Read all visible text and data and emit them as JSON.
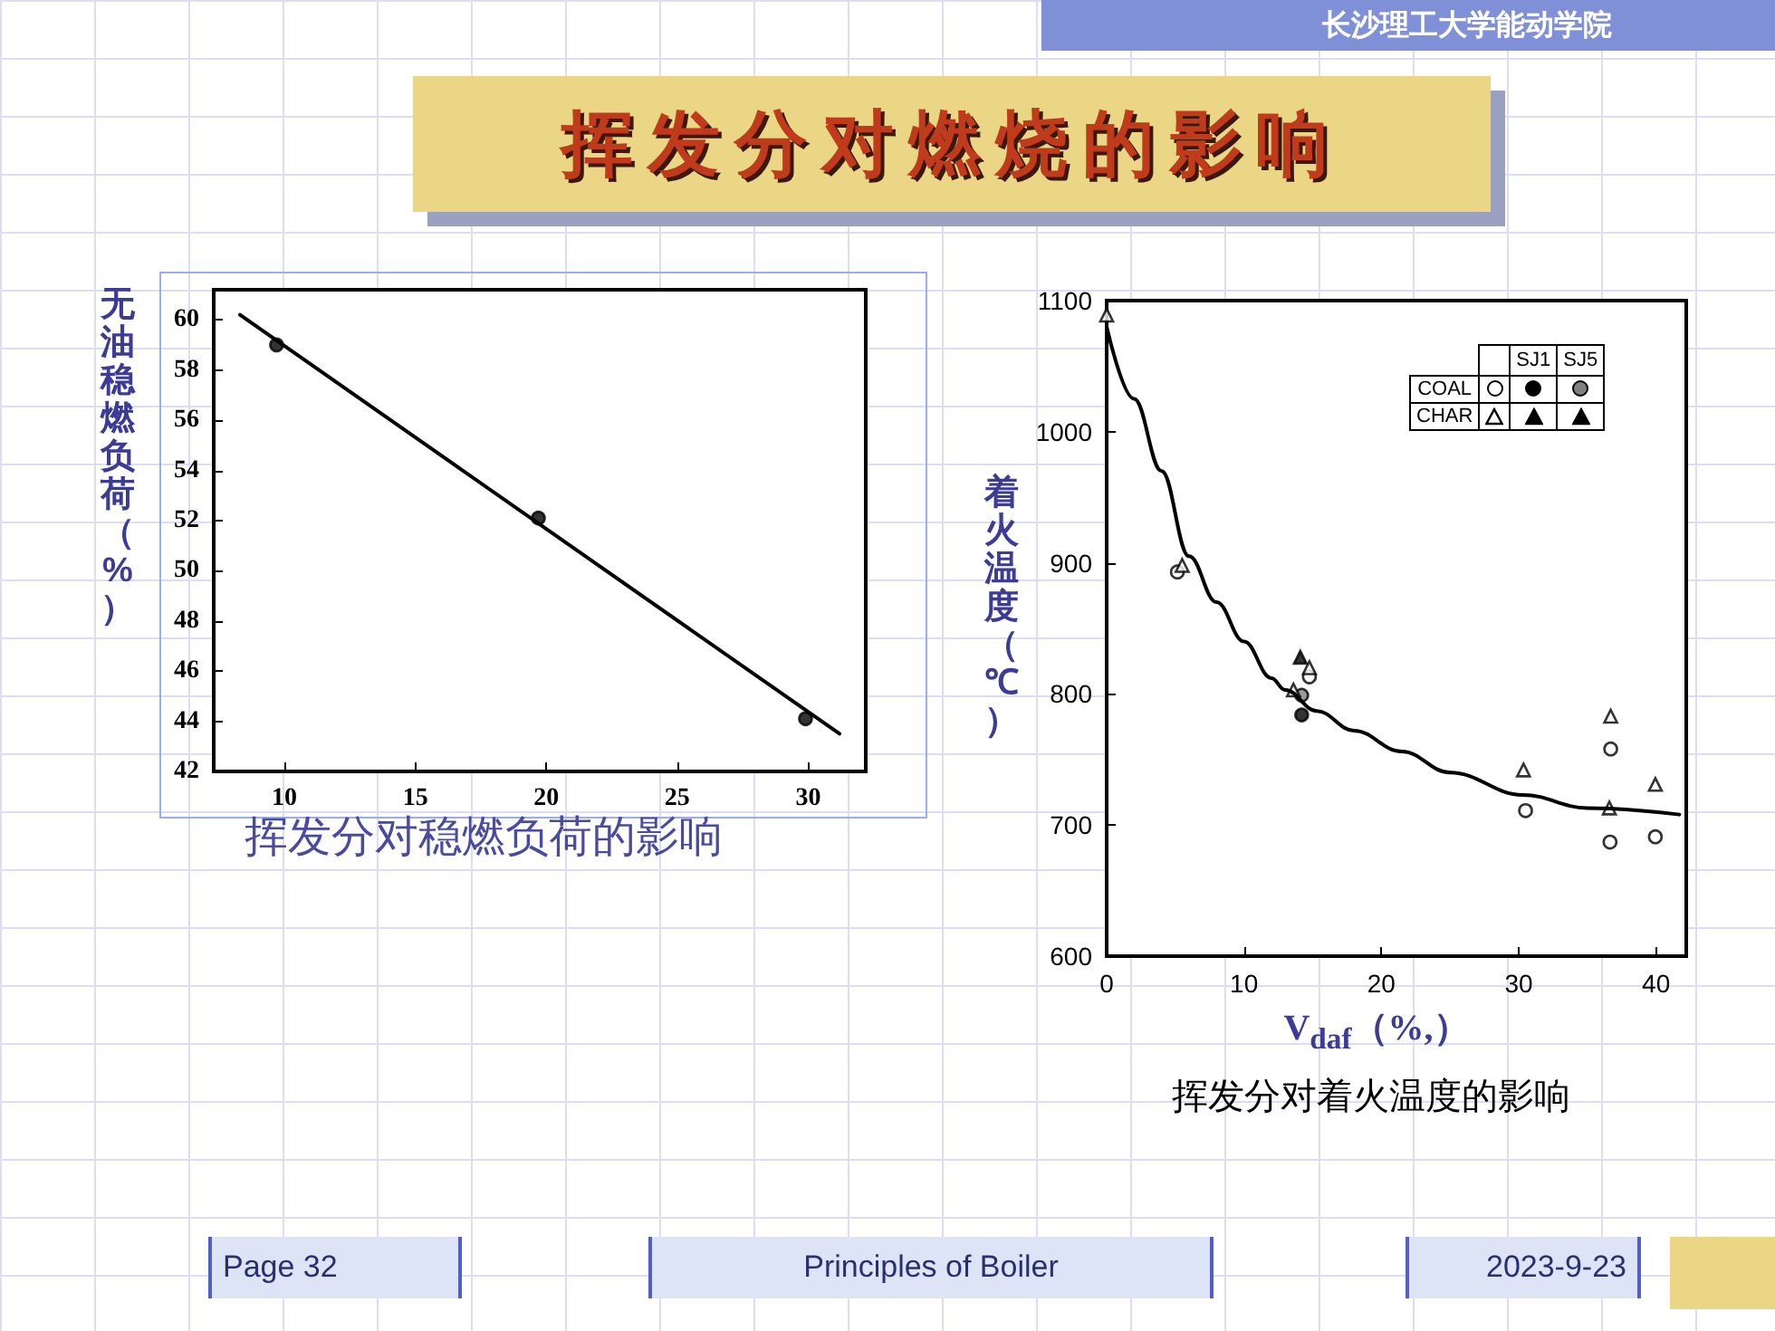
{
  "chart_data": [
    {
      "type": "scatter",
      "title": "挥发分对稳燃负荷的影响",
      "ylabel": "无油稳燃负荷（%）",
      "annotations": [
        "挥发分对燃烧的影响",
        "长沙理工大学能动学院",
        "Page 32",
        "Principles of Boiler",
        "2023-9-23"
      ],
      "xlim": [
        7.3,
        32.2
      ],
      "xticks": [
        10,
        15,
        20,
        25,
        30
      ],
      "ylim": [
        42,
        61.2
      ],
      "yticks": [
        42,
        44,
        46,
        48,
        50,
        52,
        54,
        56,
        58,
        60
      ],
      "series": [
        {
          "color": "#000000",
          "marker": "circle",
          "x": [
            9.7,
            19.7,
            29.9
          ],
          "values": [
            59.0,
            52.1,
            44.1
          ]
        },
        {
          "type": "line",
          "color": "#000000",
          "marker": "none",
          "x": [
            8.3,
            31.2
          ],
          "values": [
            60.2,
            43.5
          ]
        }
      ]
    },
    {
      "type": "scatter",
      "title": "挥发分对着火温度的影响",
      "xlabel": "V$_{daf}$（%,）",
      "ylabel": "着火温度（℃）",
      "annotations": [
        "SJ1",
        "SJ5",
        "COAL",
        "CHAR"
      ],
      "xlim": [
        0,
        42.2
      ],
      "xticks": [
        0,
        10,
        20,
        30,
        40
      ],
      "ylim": [
        600,
        1100
      ],
      "yticks": [
        600,
        700,
        800,
        900,
        {
          "value": 1000,
          "label": "1000"
        },
        {
          "value": 1100,
          "label": "1100"
        }
      ],
      "series": [
        {
          "color": "#ffffff",
          "marker": "circle",
          "x": [
            5.15,
            14.76,
            30.5,
            36.7,
            36.65,
            39.95
          ],
          "values": [
            893,
            813,
            711,
            758,
            687,
            691
          ]
        },
        {
          "color": "#000000",
          "marker": "circle",
          "x": [
            14.2
          ],
          "values": [
            784
          ]
        },
        {
          "color": "#808080",
          "marker": "circle",
          "x": [
            14.2
          ],
          "values": [
            799
          ]
        },
        {
          "color": "#ffffff",
          "marker": "triangle",
          "x": [
            0,
            5.5,
            13.6,
            14.76,
            30.35,
            36.7,
            36.6,
            39.95
          ],
          "values": [
            1089,
            898,
            803,
            820,
            742,
            783,
            713,
            731
          ]
        },
        {
          "color": "#000000",
          "marker": "triangle",
          "x": [
            14.1
          ],
          "values": [
            828
          ]
        },
        {
          "color": "#000000",
          "marker": "triangle"
        },
        {
          "type": "line",
          "color": "#000000",
          "marker": "none",
          "x": [
            0,
            2,
            4,
            6,
            8,
            10,
            12,
            13,
            15.3,
            18,
            21.5,
            25,
            30.3,
            35,
            41.7
          ],
          "values": [
            1080,
            1025,
            970,
            905,
            870,
            840,
            812,
            803,
            787,
            772,
            756,
            740,
            723,
            713,
            708
          ]
        }
      ]
    }
  ]
}
